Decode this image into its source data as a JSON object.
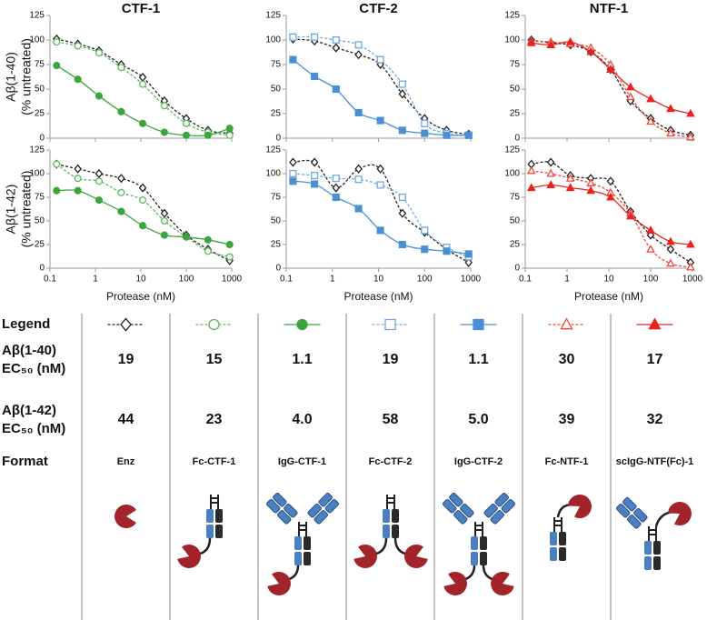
{
  "chart_data": [
    {
      "type": "line",
      "title": "CTF-1",
      "y_label": [
        "Aβ(1-40)",
        "(% untreated)"
      ],
      "x_log": true,
      "xtick_labels": false,
      "x": [
        0.14,
        0.41,
        1.2,
        3.7,
        11,
        33,
        100,
        300,
        900
      ],
      "xlim": [
        0.1,
        1000
      ],
      "ylim": [
        0,
        125
      ],
      "xticks": [
        0.1,
        1,
        10,
        100,
        1000
      ],
      "yticks": [
        0,
        25,
        50,
        75,
        100,
        125
      ],
      "series": [
        {
          "color": "#222222",
          "marker": "diamond",
          "filled": false,
          "dashed": true,
          "values": [
            101,
            96,
            89,
            75,
            62,
            38,
            20,
            8,
            5
          ]
        },
        {
          "color": "#5cb85c",
          "marker": "circle",
          "filled": false,
          "dashed": true,
          "values": [
            98,
            94,
            87,
            72,
            55,
            33,
            15,
            6,
            3
          ]
        },
        {
          "color": "#3aa53a",
          "marker": "circle",
          "filled": true,
          "dashed": false,
          "values": [
            74,
            60,
            43,
            27,
            15,
            6,
            3,
            3,
            10
          ]
        }
      ]
    },
    {
      "type": "line",
      "title": "CTF-2",
      "x_log": true,
      "xtick_labels": false,
      "x": [
        0.14,
        0.41,
        1.2,
        3.7,
        11,
        33,
        100,
        300,
        900
      ],
      "xlim": [
        0.1,
        1000
      ],
      "ylim": [
        0,
        125
      ],
      "xticks": [
        0.1,
        1,
        10,
        100,
        1000
      ],
      "yticks": [
        0,
        25,
        50,
        75,
        100,
        125
      ],
      "series": [
        {
          "color": "#222222",
          "marker": "diamond",
          "filled": false,
          "dashed": true,
          "values": [
            101,
            99,
            92,
            85,
            75,
            45,
            20,
            8,
            4
          ]
        },
        {
          "color": "#6fa8dc",
          "marker": "square",
          "filled": false,
          "dashed": true,
          "values": [
            103,
            103,
            100,
            95,
            80,
            55,
            15,
            5,
            3
          ]
        },
        {
          "color": "#4a8fd4",
          "marker": "square",
          "filled": true,
          "dashed": false,
          "values": [
            80,
            63,
            50,
            26,
            18,
            8,
            5,
            3,
            3
          ]
        }
      ]
    },
    {
      "type": "line",
      "title": "NTF-1",
      "x_log": true,
      "xtick_labels": false,
      "x": [
        0.14,
        0.41,
        1.2,
        3.7,
        11,
        33,
        100,
        300,
        900
      ],
      "xlim": [
        0.1,
        1000
      ],
      "ylim": [
        0,
        125
      ],
      "xticks": [
        0.1,
        1,
        10,
        100,
        1000
      ],
      "yticks": [
        0,
        25,
        50,
        75,
        100,
        125
      ],
      "series": [
        {
          "color": "#222222",
          "marker": "diamond",
          "filled": false,
          "dashed": true,
          "values": [
            100,
            97,
            95,
            88,
            70,
            38,
            20,
            8,
            3
          ]
        },
        {
          "color": "#f0453a",
          "marker": "triangle",
          "filled": false,
          "dashed": true,
          "values": [
            99,
            98,
            96,
            92,
            75,
            42,
            17,
            5,
            1
          ]
        },
        {
          "color": "#e8231e",
          "marker": "triangle",
          "filled": true,
          "dashed": false,
          "values": [
            97,
            95,
            98,
            88,
            70,
            52,
            40,
            30,
            25
          ]
        }
      ]
    },
    {
      "type": "line",
      "y_label": [
        "Aβ(1-42)",
        "(% untreated)"
      ],
      "x_label": "Protease (nM)",
      "x_log": true,
      "xtick_labels": true,
      "x": [
        0.14,
        0.41,
        1.2,
        3.7,
        11,
        33,
        100,
        300,
        900
      ],
      "xlim": [
        0.1,
        1000
      ],
      "ylim": [
        0,
        125
      ],
      "xticks": [
        0.1,
        1,
        10,
        100,
        1000
      ],
      "yticks": [
        0,
        25,
        50,
        75,
        100,
        125
      ],
      "series": [
        {
          "color": "#222222",
          "marker": "diamond",
          "filled": false,
          "dashed": true,
          "values": [
            110,
            105,
            100,
            95,
            85,
            58,
            35,
            20,
            8
          ]
        },
        {
          "color": "#5cb85c",
          "marker": "circle",
          "filled": false,
          "dashed": true,
          "values": [
            110,
            95,
            92,
            80,
            72,
            50,
            33,
            18,
            12
          ]
        },
        {
          "color": "#3aa53a",
          "marker": "circle",
          "filled": true,
          "dashed": false,
          "values": [
            82,
            82,
            72,
            60,
            45,
            35,
            33,
            30,
            25
          ]
        }
      ]
    },
    {
      "type": "line",
      "x_label": "Protease (nM)",
      "x_log": true,
      "xtick_labels": true,
      "x": [
        0.14,
        0.41,
        1.2,
        3.7,
        11,
        33,
        100,
        300,
        900
      ],
      "xlim": [
        0.1,
        1000
      ],
      "ylim": [
        0,
        125
      ],
      "xticks": [
        0.1,
        1,
        10,
        100,
        1000
      ],
      "yticks": [
        0,
        25,
        50,
        75,
        100,
        125
      ],
      "series": [
        {
          "color": "#222222",
          "marker": "diamond",
          "filled": false,
          "dashed": true,
          "values": [
            112,
            112,
            85,
            105,
            105,
            58,
            38,
            20,
            6
          ]
        },
        {
          "color": "#6fa8dc",
          "marker": "square",
          "filled": false,
          "dashed": true,
          "values": [
            100,
            98,
            95,
            94,
            88,
            75,
            40,
            22,
            12
          ]
        },
        {
          "color": "#4a8fd4",
          "marker": "square",
          "filled": true,
          "dashed": false,
          "values": [
            92,
            89,
            75,
            63,
            40,
            25,
            20,
            18,
            15
          ]
        }
      ]
    },
    {
      "type": "line",
      "x_label": "Protease (nM)",
      "x_log": true,
      "xtick_labels": true,
      "x": [
        0.14,
        0.41,
        1.2,
        3.7,
        11,
        33,
        100,
        300,
        900
      ],
      "xlim": [
        0.1,
        1000
      ],
      "ylim": [
        0,
        125
      ],
      "xticks": [
        0.1,
        1,
        10,
        100,
        1000
      ],
      "yticks": [
        0,
        25,
        50,
        75,
        100,
        125
      ],
      "series": [
        {
          "color": "#222222",
          "marker": "diamond",
          "filled": false,
          "dashed": true,
          "values": [
            110,
            112,
            98,
            95,
            92,
            60,
            35,
            20,
            6
          ]
        },
        {
          "color": "#f0453a",
          "marker": "triangle",
          "filled": false,
          "dashed": true,
          "values": [
            103,
            100,
            95,
            90,
            80,
            58,
            20,
            5,
            1
          ]
        },
        {
          "color": "#e8231e",
          "marker": "triangle",
          "filled": true,
          "dashed": false,
          "values": [
            85,
            88,
            85,
            82,
            75,
            55,
            40,
            28,
            25
          ]
        }
      ]
    }
  ],
  "legend_table": {
    "row_headers": [
      [
        "Legend"
      ],
      [
        "Aβ(1-40)",
        "EC₅₀ (nM)"
      ],
      [
        "Aβ(1-42)",
        "EC₅₀ (nM)"
      ],
      [
        "Format"
      ]
    ],
    "columns": [
      {
        "marker": "diamond",
        "filled": false,
        "dashed": true,
        "color": "#222222",
        "ec50_ab40": "19",
        "ec50_ab42": "44",
        "format": "Enz"
      },
      {
        "marker": "circle",
        "filled": false,
        "dashed": true,
        "color": "#5cb85c",
        "ec50_ab40": "15",
        "ec50_ab42": "23",
        "format": "Fc-CTF-1"
      },
      {
        "marker": "circle",
        "filled": true,
        "dashed": false,
        "color": "#3aa53a",
        "ec50_ab40": "1.1",
        "ec50_ab42": "4.0",
        "format": "IgG-CTF-1"
      },
      {
        "marker": "square",
        "filled": false,
        "dashed": true,
        "color": "#6fa8dc",
        "ec50_ab40": "19",
        "ec50_ab42": "58",
        "format": "Fc-CTF-2"
      },
      {
        "marker": "square",
        "filled": true,
        "dashed": false,
        "color": "#4a8fd4",
        "ec50_ab40": "1.1",
        "ec50_ab42": "5.0",
        "format": "IgG-CTF-2"
      },
      {
        "marker": "triangle",
        "filled": false,
        "dashed": true,
        "color": "#f0453a",
        "ec50_ab40": "30",
        "ec50_ab42": "39",
        "format": "Fc-NTF-1"
      },
      {
        "marker": "triangle",
        "filled": true,
        "dashed": false,
        "color": "#e8231e",
        "ec50_ab40": "17",
        "ec50_ab42": "32",
        "format": "scIgG-NTF(Fc)-1"
      }
    ]
  }
}
